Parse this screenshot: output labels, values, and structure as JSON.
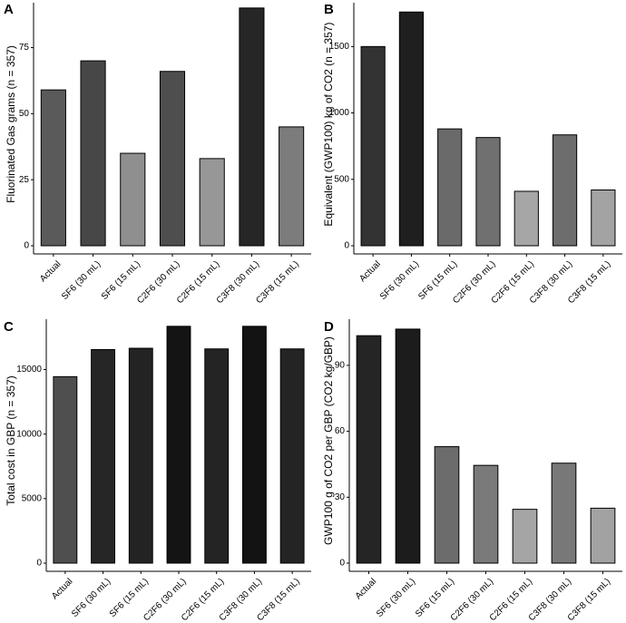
{
  "chart_data": [
    {
      "type": "bar",
      "panel": "A",
      "ylabel": "Fluorinated Gas grams (n = 357)",
      "xlabel": "",
      "ylim": [
        0,
        92
      ],
      "yticks": [
        0,
        25,
        50,
        75
      ],
      "categories": [
        "Actual",
        "SF6 (30 mL)",
        "SF6 (15 mL)",
        "C2F6 (30 mL)",
        "C2F6 (15 mL)",
        "C3F8 (30 mL)",
        "C3F8 (15 mL)"
      ],
      "values": [
        59,
        70,
        35,
        66,
        33,
        90,
        45
      ],
      "colors": [
        "#5a5a5a",
        "#474747",
        "#8f8f8f",
        "#4e4e4e",
        "#979797",
        "#262626",
        "#7c7c7c"
      ]
    },
    {
      "type": "bar",
      "panel": "B",
      "ylabel": "Equivalent (GWP100) kg of CO2 (n = 357)",
      "xlabel": "",
      "ylim": [
        0,
        1830
      ],
      "yticks": [
        0,
        500,
        1000,
        1500
      ],
      "categories": [
        "Actual",
        "SF6 (30 mL)",
        "SF6 (15 mL)",
        "C2F6 (30 mL)",
        "C2F6 (15 mL)",
        "C3F8 (30 mL)",
        "C3F8 (15 mL)"
      ],
      "values": [
        1500,
        1760,
        880,
        815,
        410,
        835,
        420
      ],
      "colors": [
        "#333333",
        "#1f1f1f",
        "#6a6a6a",
        "#707070",
        "#a6a6a6",
        "#6d6d6d",
        "#a3a3a3"
      ]
    },
    {
      "type": "bar",
      "panel": "C",
      "ylabel": "Total cost in GBP (n = 357)",
      "xlabel": "",
      "ylim": [
        0,
        18900
      ],
      "yticks": [
        0,
        5000,
        10000,
        15000
      ],
      "categories": [
        "Actual",
        "SF6 (30 mL)",
        "SF6 (15 mL)",
        "C2F6 (30 mL)",
        "C2F6 (15 mL)",
        "C3F8 (30 mL)",
        "C3F8 (15 mL)"
      ],
      "values": [
        14450,
        16550,
        16650,
        18350,
        16600,
        18350,
        16600
      ],
      "colors": [
        "#4f4f4f",
        "#262626",
        "#232323",
        "#141414",
        "#242424",
        "#131313",
        "#242424"
      ]
    },
    {
      "type": "bar",
      "panel": "D",
      "ylabel": "GWP100 g of CO2 per GBP (CO2 kg/GBP)",
      "xlabel": "",
      "ylim": [
        0,
        111
      ],
      "yticks": [
        0,
        30,
        60,
        90
      ],
      "categories": [
        "Actual",
        "SF6 (30 mL)",
        "SF6 (15 mL)",
        "C2F6 (30 mL)",
        "C2F6 (15 mL)",
        "C3F8 (30 mL)",
        "C3F8 (15 mL)"
      ],
      "values": [
        103.5,
        106.5,
        53,
        44.5,
        24.5,
        45.5,
        25
      ],
      "colors": [
        "#252525",
        "#1c1c1c",
        "#6c6c6c",
        "#7a7a7a",
        "#a5a5a5",
        "#787878",
        "#a2a2a2"
      ]
    }
  ]
}
